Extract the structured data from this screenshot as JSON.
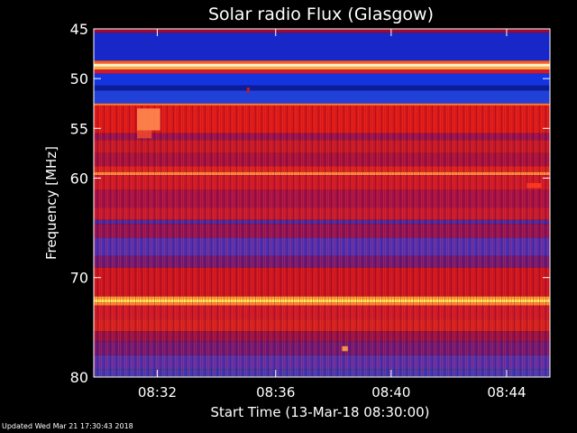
{
  "chart_data": {
    "type": "heatmap",
    "title": "Solar radio Flux (Glasgow)",
    "xlabel": "Start Time (13-Mar-18 08:30:00)",
    "ylabel": "Frequency [MHz]",
    "x_unit": "minutes after 08:30:00",
    "xlim": [
      -0.3,
      15.5
    ],
    "ylim": [
      45,
      80
    ],
    "y_inverted": true,
    "x_ticks": [
      {
        "value": 1.9,
        "label": "08:32"
      },
      {
        "value": 6.0,
        "label": "08:36"
      },
      {
        "value": 10.0,
        "label": "08:40"
      },
      {
        "value": 14.0,
        "label": "08:44"
      }
    ],
    "y_ticks": [
      {
        "value": 45,
        "label": "45"
      },
      {
        "value": 50,
        "label": "50"
      },
      {
        "value": 55,
        "label": "55"
      },
      {
        "value": 60,
        "label": "60"
      },
      {
        "value": 70,
        "label": "70"
      },
      {
        "value": 80,
        "label": "80"
      }
    ],
    "frequency_bands": [
      {
        "from": 45.0,
        "to": 45.4,
        "color": "#9a0a35"
      },
      {
        "from": 45.4,
        "to": 48.2,
        "color": "#1828c8"
      },
      {
        "from": 48.2,
        "to": 48.5,
        "color": "#ff5a20"
      },
      {
        "from": 48.5,
        "to": 48.8,
        "color": "#fff4cc"
      },
      {
        "from": 48.8,
        "to": 49.1,
        "color": "#ffa840"
      },
      {
        "from": 49.1,
        "to": 49.5,
        "color": "#d01830"
      },
      {
        "from": 49.5,
        "to": 50.7,
        "color": "#1434e0"
      },
      {
        "from": 50.7,
        "to": 51.2,
        "color": "#0c1c9a"
      },
      {
        "from": 51.2,
        "to": 52.5,
        "color": "#2040d8"
      },
      {
        "from": 52.5,
        "to": 52.7,
        "color": "#ff7838"
      },
      {
        "from": 52.7,
        "to": 55.5,
        "color": "#d81818"
      },
      {
        "from": 55.5,
        "to": 56.2,
        "color": "#901050"
      },
      {
        "from": 56.2,
        "to": 57.5,
        "color": "#c01828"
      },
      {
        "from": 57.5,
        "to": 58.8,
        "color": "#a01040"
      },
      {
        "from": 58.8,
        "to": 59.4,
        "color": "#d82020"
      },
      {
        "from": 59.4,
        "to": 59.7,
        "color": "#ff9040"
      },
      {
        "from": 59.7,
        "to": 61.2,
        "color": "#c81828"
      },
      {
        "from": 61.2,
        "to": 63.0,
        "color": "#a01048"
      },
      {
        "from": 63.0,
        "to": 64.2,
        "color": "#c01830"
      },
      {
        "from": 64.2,
        "to": 64.6,
        "color": "#4028a8"
      },
      {
        "from": 64.6,
        "to": 66.0,
        "color": "#8a1258"
      },
      {
        "from": 66.0,
        "to": 67.8,
        "color": "#4a30b8"
      },
      {
        "from": 67.8,
        "to": 69.0,
        "color": "#6a1878"
      },
      {
        "from": 69.0,
        "to": 71.9,
        "color": "#c81420"
      },
      {
        "from": 71.9,
        "to": 72.2,
        "color": "#ffa030"
      },
      {
        "from": 72.2,
        "to": 72.5,
        "color": "#ffe860"
      },
      {
        "from": 72.5,
        "to": 72.8,
        "color": "#ff8c30"
      },
      {
        "from": 72.8,
        "to": 74.2,
        "color": "#c81828"
      },
      {
        "from": 74.2,
        "to": 75.4,
        "color": "#d02020"
      },
      {
        "from": 75.4,
        "to": 76.4,
        "color": "#901048"
      },
      {
        "from": 76.4,
        "to": 77.8,
        "color": "#6a1878"
      },
      {
        "from": 77.8,
        "to": 79.2,
        "color": "#5030b0"
      },
      {
        "from": 79.2,
        "to": 80.0,
        "color": "#3a3ab8"
      }
    ],
    "features": [
      {
        "t0": 1.2,
        "t1": 2.0,
        "f0": 53.0,
        "f1": 55.2,
        "color": "#ff8a50"
      },
      {
        "t0": 1.2,
        "t1": 1.7,
        "f0": 55.2,
        "f1": 56.0,
        "color": "#e84830"
      },
      {
        "t0": 5.0,
        "t1": 5.1,
        "f0": 50.9,
        "f1": 51.4,
        "color": "#d01818"
      },
      {
        "t0": 8.3,
        "t1": 8.5,
        "f0": 76.9,
        "f1": 77.4,
        "color": "#ffa040"
      },
      {
        "t0": 14.7,
        "t1": 15.2,
        "f0": 60.5,
        "f1": 61.0,
        "color": "#ff3a20"
      }
    ]
  },
  "footer": {
    "updated": "Updated Wed Mar 21 17:30:43 2018"
  }
}
